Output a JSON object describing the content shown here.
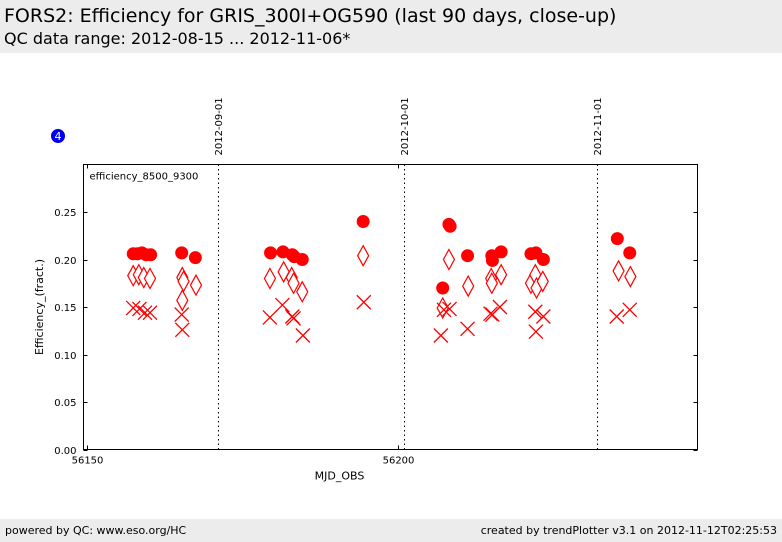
{
  "header": {
    "title": "FORS2: Efficiency for GRIS_300I+OG590 (last 90 days, close-up)",
    "subtitle": "QC data range: 2012-08-15 ... 2012-11-06*"
  },
  "footer": {
    "left": "powered by QC: www.eso.org/HC",
    "right": "created by trendPlotter v3.1 on 2012-11-12T02:25:53"
  },
  "badge": "4",
  "colors": {
    "marker": "#ff0000",
    "badge": "#0000ee"
  },
  "chart_data": {
    "type": "scatter",
    "panel_label": "efficiency_8500_9300",
    "xlabel": "MJD_OBS",
    "ylabel": "Efficiency_(fract.)",
    "xlim": [
      56149.4,
      56248.2
    ],
    "ylim": [
      0.0,
      0.3
    ],
    "x_ticks": [
      56150,
      56200
    ],
    "y_ticks": [
      0.0,
      0.05,
      0.1,
      0.15,
      0.2,
      0.25
    ],
    "y_tick_labels": [
      "0.00",
      "0.05",
      "0.10",
      "0.15",
      "0.20",
      "0.25"
    ],
    "date_markers": [
      {
        "x": 56171,
        "label": "2012-09-01"
      },
      {
        "x": 56201,
        "label": "2012-10-01"
      },
      {
        "x": 56232,
        "label": "2012-11-01"
      }
    ],
    "series": [
      {
        "marker": "circle",
        "points": [
          [
            56157.4,
            0.206
          ],
          [
            56158.1,
            0.206
          ],
          [
            56158.8,
            0.207
          ],
          [
            56159.5,
            0.205
          ],
          [
            56160.2,
            0.205
          ],
          [
            56165.2,
            0.207
          ],
          [
            56167.4,
            0.202
          ],
          [
            56179.5,
            0.207
          ],
          [
            56181.5,
            0.208
          ],
          [
            56183.0,
            0.205
          ],
          [
            56183.3,
            0.203
          ],
          [
            56184.6,
            0.2
          ],
          [
            56194.4,
            0.24
          ],
          [
            56207.2,
            0.17
          ],
          [
            56208.2,
            0.237
          ],
          [
            56208.4,
            0.235
          ],
          [
            56211.2,
            0.204
          ],
          [
            56215.1,
            0.204
          ],
          [
            56215.2,
            0.199
          ],
          [
            56216.6,
            0.208
          ],
          [
            56221.4,
            0.206
          ],
          [
            56222.2,
            0.207
          ],
          [
            56223.4,
            0.2
          ],
          [
            56235.3,
            0.222
          ],
          [
            56237.3,
            0.207
          ]
        ]
      },
      {
        "marker": "diamond",
        "points": [
          [
            56157.4,
            0.183
          ],
          [
            56158.3,
            0.184
          ],
          [
            56159.1,
            0.181
          ],
          [
            56160.1,
            0.18
          ],
          [
            56165.3,
            0.181
          ],
          [
            56165.5,
            0.177
          ],
          [
            56165.3,
            0.157
          ],
          [
            56167.5,
            0.173
          ],
          [
            56179.4,
            0.18
          ],
          [
            56181.6,
            0.187
          ],
          [
            56182.9,
            0.181
          ],
          [
            56183.2,
            0.175
          ],
          [
            56184.6,
            0.166
          ],
          [
            56194.4,
            0.204
          ],
          [
            56207.2,
            0.149
          ],
          [
            56208.2,
            0.2
          ],
          [
            56211.3,
            0.172
          ],
          [
            56215.0,
            0.18
          ],
          [
            56215.1,
            0.175
          ],
          [
            56216.6,
            0.184
          ],
          [
            56221.4,
            0.175
          ],
          [
            56222.1,
            0.184
          ],
          [
            56222.3,
            0.17
          ],
          [
            56223.3,
            0.177
          ],
          [
            56235.5,
            0.188
          ],
          [
            56237.4,
            0.182
          ]
        ]
      },
      {
        "marker": "x",
        "points": [
          [
            56157.4,
            0.149
          ],
          [
            56158.4,
            0.148
          ],
          [
            56159.3,
            0.144
          ],
          [
            56160.1,
            0.144
          ],
          [
            56165.2,
            0.142
          ],
          [
            56165.3,
            0.126
          ],
          [
            56179.4,
            0.139
          ],
          [
            56181.4,
            0.152
          ],
          [
            56183.0,
            0.14
          ],
          [
            56183.2,
            0.138
          ],
          [
            56184.7,
            0.12
          ],
          [
            56194.5,
            0.155
          ],
          [
            56206.9,
            0.12
          ],
          [
            56207.4,
            0.147
          ],
          [
            56208.3,
            0.148
          ],
          [
            56211.2,
            0.127
          ],
          [
            56214.9,
            0.143
          ],
          [
            56215.2,
            0.142
          ],
          [
            56216.4,
            0.15
          ],
          [
            56222.1,
            0.145
          ],
          [
            56222.2,
            0.124
          ],
          [
            56223.4,
            0.14
          ],
          [
            56235.2,
            0.14
          ],
          [
            56237.3,
            0.147
          ]
        ]
      }
    ]
  }
}
